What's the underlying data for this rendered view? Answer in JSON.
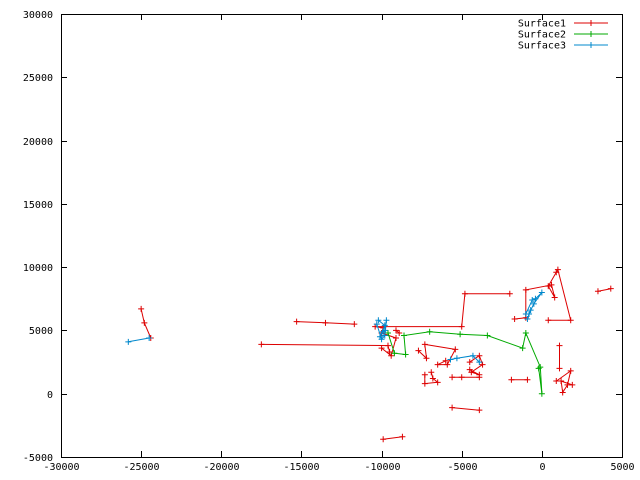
{
  "chart_data": {
    "type": "line",
    "title": "",
    "xlabel": "",
    "ylabel": "",
    "xlim": [
      -30000,
      5000
    ],
    "ylim": [
      -5000,
      30000
    ],
    "xticks": [
      -30000,
      -25000,
      -20000,
      -15000,
      -10000,
      -5000,
      0,
      5000
    ],
    "yticks": [
      -5000,
      0,
      5000,
      10000,
      15000,
      20000,
      25000,
      30000
    ],
    "xtick_labels": [
      "-30000",
      "-25000",
      "-20000",
      "-15000",
      "-10000",
      "-5000",
      "0",
      "5000"
    ],
    "ytick_labels": [
      "-5000",
      "0",
      "5000",
      "10000",
      "15000",
      "20000",
      "25000",
      "30000"
    ],
    "grid": false,
    "legend": "top-right",
    "series": [
      {
        "name": "Surface1",
        "color": "#dd0000",
        "segments": [
          [
            [
              -25000,
              6700
            ],
            [
              -24800,
              5600
            ],
            [
              -24400,
              4400
            ]
          ],
          [
            [
              -15300,
              5700
            ],
            [
              -13500,
              5600
            ],
            [
              -11700,
              5500
            ]
          ],
          [
            [
              -17500,
              3900
            ],
            [
              -9600,
              3800
            ],
            [
              -9500,
              3300
            ]
          ],
          [
            [
              -10000,
              3600
            ],
            [
              -9400,
              3000
            ],
            [
              -9100,
              4400
            ],
            [
              -10000,
              4800
            ],
            [
              -9900,
              5200
            ],
            [
              -10400,
              5300
            ],
            [
              -5000,
              5300
            ],
            [
              -4800,
              7900
            ],
            [
              -2000,
              7900
            ]
          ],
          [
            [
              -9100,
              5000
            ],
            [
              -8900,
              4800
            ]
          ],
          [
            [
              -7700,
              3400
            ],
            [
              -7200,
              2800
            ],
            [
              -7300,
              3900
            ],
            [
              -5400,
              3500
            ],
            [
              -5900,
              2300
            ],
            [
              -6500,
              2300
            ],
            [
              -6000,
              2600
            ]
          ],
          [
            [
              -5600,
              1300
            ],
            [
              -5000,
              1300
            ],
            [
              -3900,
              1300
            ]
          ],
          [
            [
              -4500,
              1900
            ],
            [
              -3900,
              1500
            ],
            [
              -4400,
              1700
            ],
            [
              -3700,
              2300
            ],
            [
              -3900,
              3000
            ],
            [
              -4500,
              2500
            ]
          ],
          [
            [
              -7300,
              1500
            ],
            [
              -7300,
              800
            ],
            [
              -6500,
              900
            ],
            [
              -6800,
              1200
            ],
            [
              -6900,
              1700
            ]
          ],
          [
            [
              -5600,
              -1100
            ],
            [
              -3900,
              -1300
            ]
          ],
          [
            [
              -9900,
              -3600
            ],
            [
              -8700,
              -3400
            ]
          ],
          [
            [
              -1900,
              1100
            ],
            [
              -900,
              1100
            ]
          ],
          [
            [
              -1700,
              5900
            ],
            [
              -1000,
              6000
            ],
            [
              -1000,
              8200
            ],
            [
              600,
              8600
            ],
            [
              800,
              7600
            ],
            [
              400,
              8500
            ],
            [
              900,
              9600
            ],
            [
              1000,
              9800
            ],
            [
              1800,
              5800
            ],
            [
              400,
              5800
            ]
          ],
          [
            [
              1100,
              3800
            ],
            [
              1100,
              2000
            ]
          ],
          [
            [
              900,
              1000
            ],
            [
              1800,
              1800
            ],
            [
              1600,
              700
            ],
            [
              1300,
              100
            ],
            [
              1200,
              1000
            ],
            [
              1900,
              700
            ]
          ],
          [
            [
              3500,
              8100
            ],
            [
              4300,
              8300
            ]
          ]
        ]
      },
      {
        "name": "Surface2",
        "color": "#00aa00",
        "segments": [
          [
            [
              -9600,
              4800
            ],
            [
              -9200,
              3200
            ],
            [
              -8500,
              3100
            ],
            [
              -8600,
              4600
            ],
            [
              -7000,
              4900
            ],
            [
              -5100,
              4700
            ],
            [
              -3400,
              4600
            ],
            [
              -1200,
              3600
            ],
            [
              -1000,
              4800
            ],
            [
              -100,
              2100
            ],
            [
              0,
              0
            ],
            [
              -200,
              2000
            ]
          ]
        ]
      },
      {
        "name": "Surface3",
        "color": "#0088cc",
        "segments": [
          [
            [
              -25800,
              4100
            ],
            [
              -24500,
              4400
            ]
          ],
          [
            [
              -10200,
              5800
            ],
            [
              -9800,
              5400
            ],
            [
              -10100,
              4500
            ],
            [
              -9900,
              4900
            ],
            [
              -9800,
              5000
            ],
            [
              -9700,
              5800
            ],
            [
              -9800,
              4600
            ],
            [
              -10000,
              4300
            ],
            [
              -10300,
              5500
            ]
          ],
          [
            [
              -5700,
              2700
            ],
            [
              -5300,
              2800
            ],
            [
              -4300,
              3000
            ],
            [
              -3900,
              2500
            ]
          ],
          [
            [
              -1000,
              6300
            ],
            [
              -600,
              7400
            ],
            [
              -400,
              7500
            ],
            [
              0,
              8000
            ],
            [
              -500,
              7100
            ],
            [
              -800,
              6300
            ],
            [
              -900,
              5900
            ],
            [
              -700,
              6600
            ]
          ]
        ]
      }
    ]
  }
}
